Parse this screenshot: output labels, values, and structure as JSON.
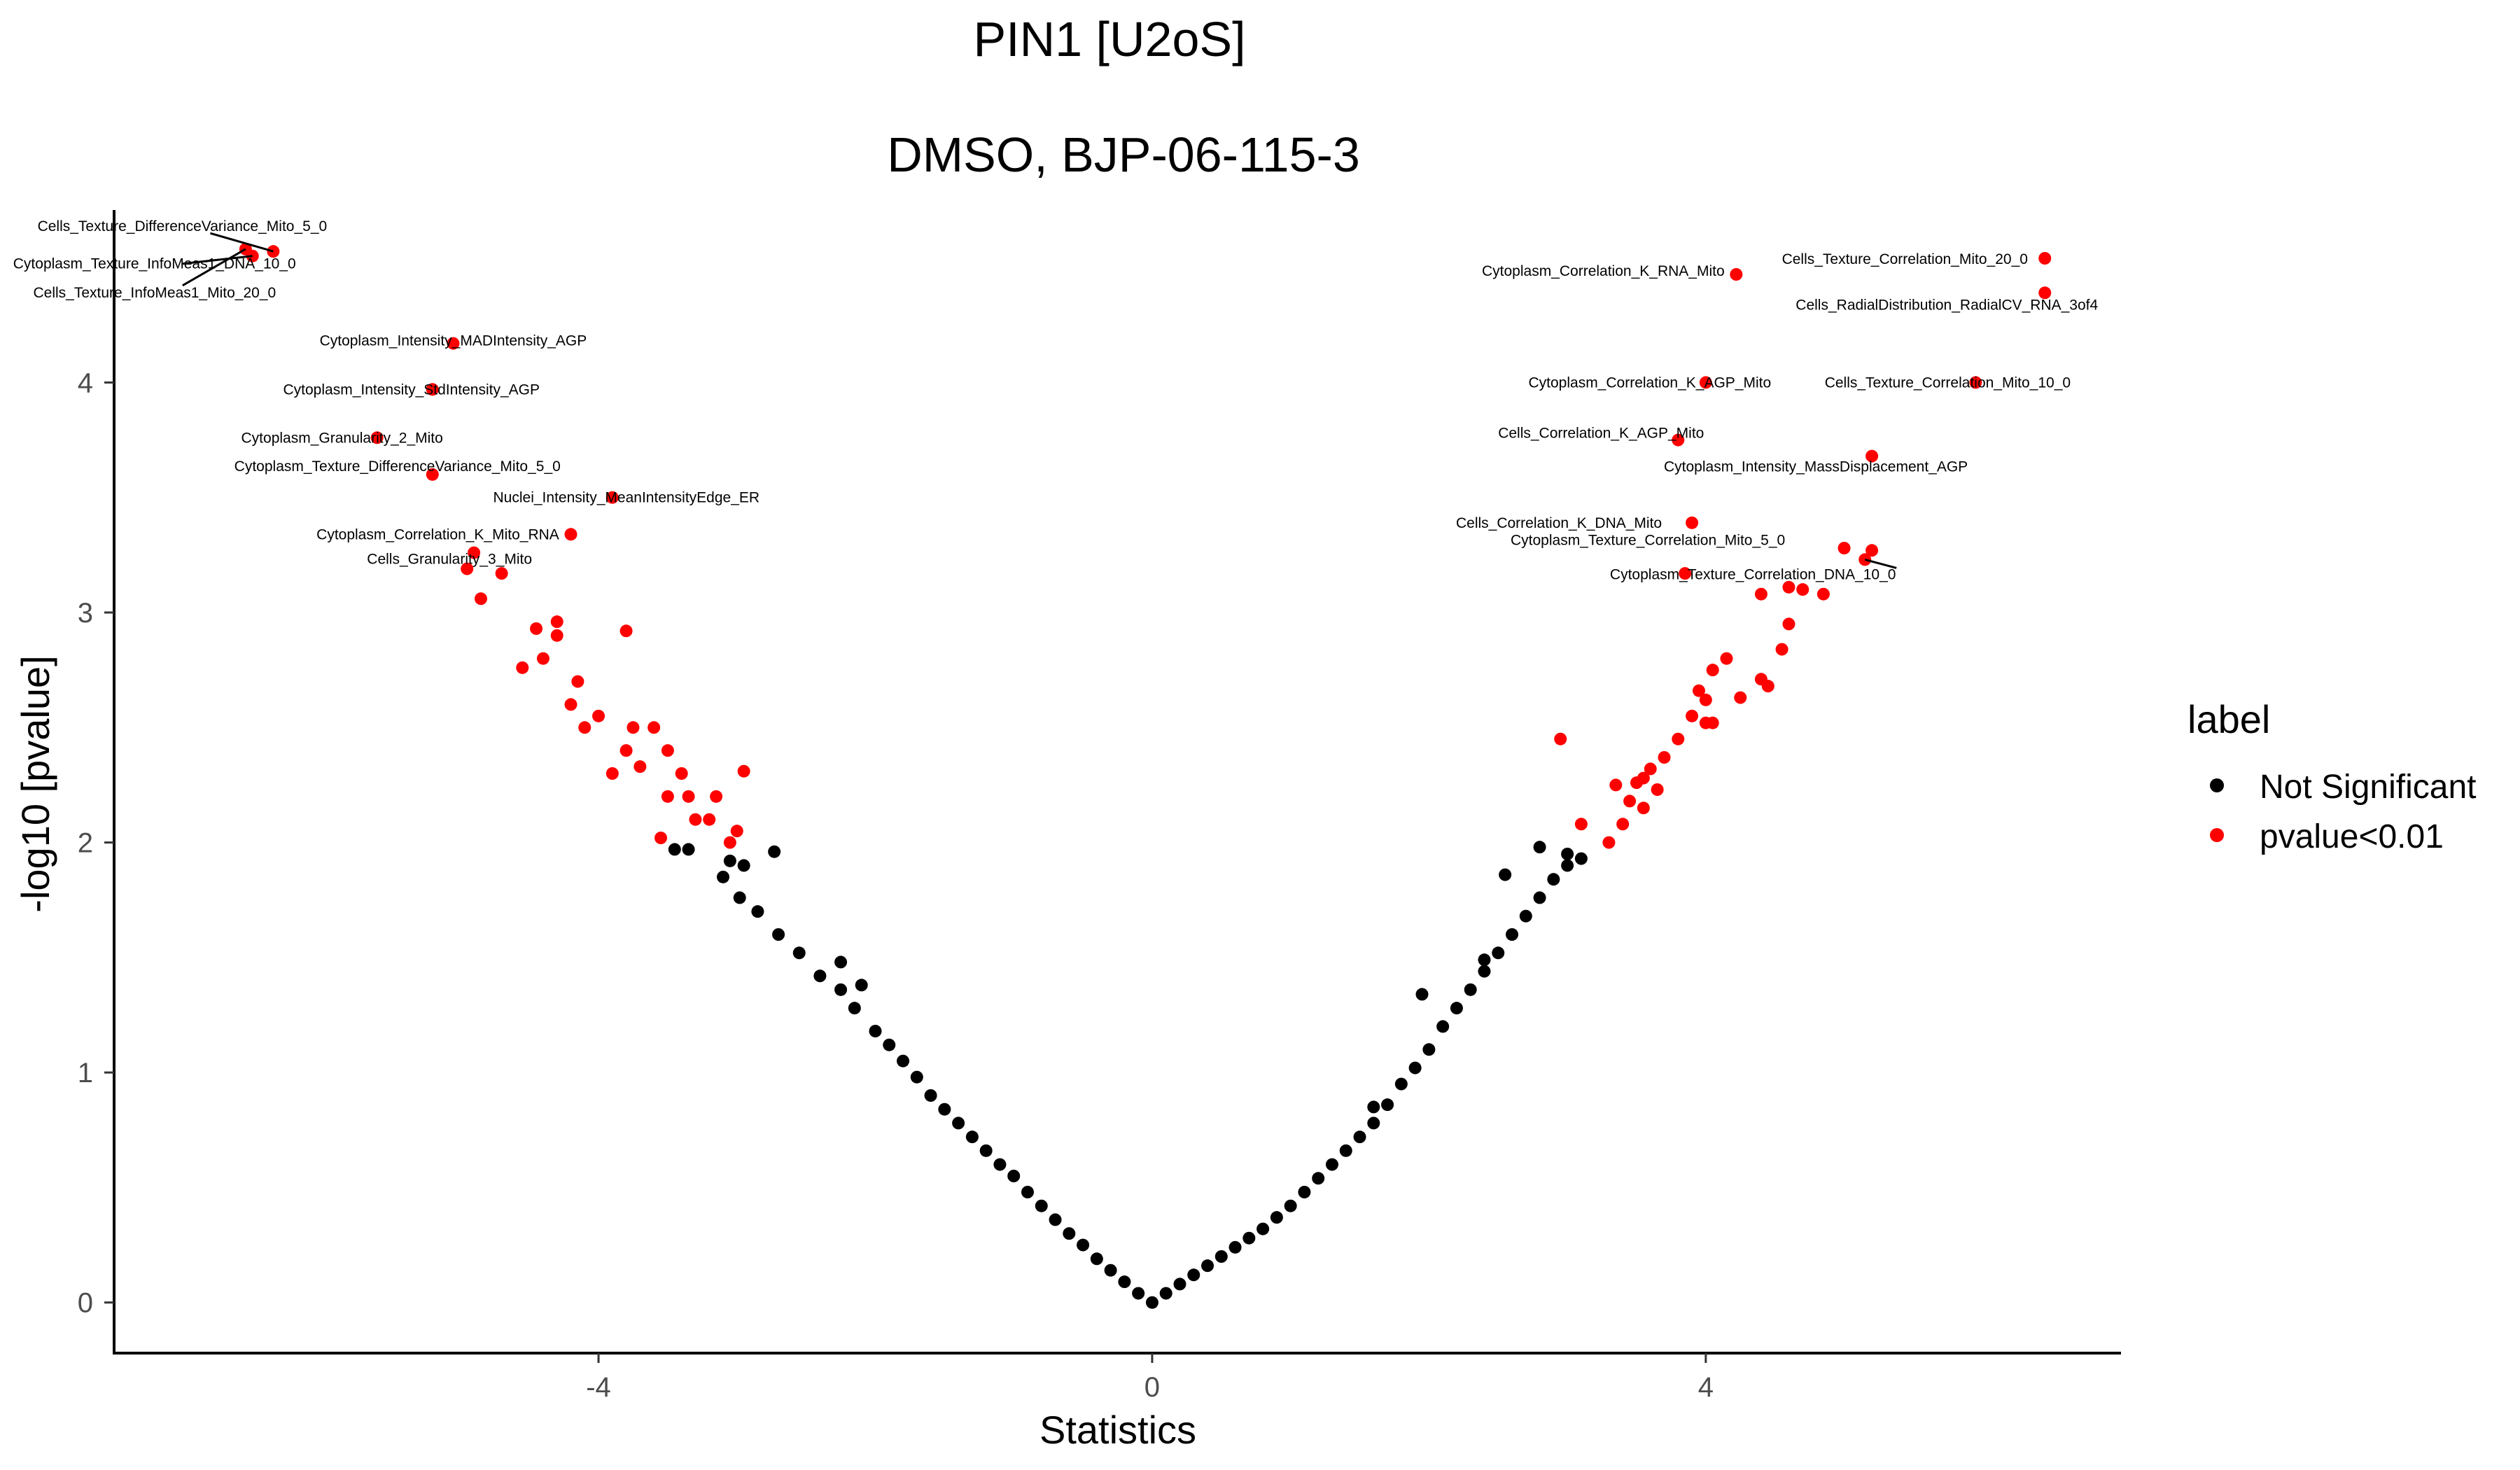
{
  "chart_data": {
    "type": "scatter",
    "title": "PIN1 [U2oS]",
    "subtitle": "DMSO, BJP-06-115-3",
    "xlabel": "Statistics",
    "ylabel": "-log10 [pvalue]",
    "xlim": [
      -7.5,
      7.0
    ],
    "ylim": [
      -0.22,
      4.75
    ],
    "x_ticks": [
      -4,
      0,
      4
    ],
    "x_tick_labels": [
      "-4",
      "0",
      "4"
    ],
    "y_ticks": [
      0,
      1,
      2,
      3,
      4
    ],
    "y_tick_labels": [
      "0",
      "1",
      "2",
      "3",
      "4"
    ],
    "grid": false,
    "legend": {
      "title": "label",
      "placement": "right",
      "entries": [
        {
          "name": "Not Significant",
          "color": "#000000"
        },
        {
          "name": "pvalue<0.01",
          "color": "#ff0000"
        }
      ]
    },
    "series": [
      {
        "name": "Not Significant",
        "color": "#000000",
        "points": [
          [
            -3.45,
            1.97
          ],
          [
            -3.35,
            1.97
          ],
          [
            -3.05,
            1.92
          ],
          [
            -2.95,
            1.9
          ],
          [
            -2.73,
            1.96
          ],
          [
            -3.1,
            1.85
          ],
          [
            -2.98,
            1.76
          ],
          [
            -2.85,
            1.7
          ],
          [
            -2.7,
            1.6
          ],
          [
            -2.55,
            1.52
          ],
          [
            -2.4,
            1.42
          ],
          [
            -2.25,
            1.36
          ],
          [
            -2.15,
            1.28
          ],
          [
            -2.25,
            1.48
          ],
          [
            -2.1,
            1.38
          ],
          [
            -2.0,
            1.18
          ],
          [
            -1.9,
            1.12
          ],
          [
            -1.8,
            1.05
          ],
          [
            -1.7,
            0.98
          ],
          [
            -1.6,
            0.9
          ],
          [
            -1.5,
            0.84
          ],
          [
            -1.4,
            0.78
          ],
          [
            -1.3,
            0.72
          ],
          [
            -1.2,
            0.66
          ],
          [
            -1.1,
            0.6
          ],
          [
            -1.0,
            0.55
          ],
          [
            -0.9,
            0.48
          ],
          [
            -0.8,
            0.42
          ],
          [
            -0.7,
            0.36
          ],
          [
            -0.6,
            0.3
          ],
          [
            -0.5,
            0.25
          ],
          [
            -0.4,
            0.19
          ],
          [
            -0.3,
            0.14
          ],
          [
            -0.2,
            0.09
          ],
          [
            -0.1,
            0.04
          ],
          [
            0.0,
            0.0
          ],
          [
            0.1,
            0.04
          ],
          [
            0.2,
            0.08
          ],
          [
            0.3,
            0.12
          ],
          [
            0.4,
            0.16
          ],
          [
            0.5,
            0.2
          ],
          [
            0.6,
            0.24
          ],
          [
            0.7,
            0.28
          ],
          [
            0.8,
            0.32
          ],
          [
            0.9,
            0.37
          ],
          [
            1.0,
            0.42
          ],
          [
            1.1,
            0.48
          ],
          [
            1.2,
            0.54
          ],
          [
            1.3,
            0.6
          ],
          [
            1.4,
            0.66
          ],
          [
            1.5,
            0.72
          ],
          [
            1.6,
            0.78
          ],
          [
            1.7,
            0.86
          ],
          [
            1.8,
            0.95
          ],
          [
            1.9,
            1.02
          ],
          [
            2.0,
            1.1
          ],
          [
            2.1,
            1.2
          ],
          [
            2.2,
            1.28
          ],
          [
            2.3,
            1.36
          ],
          [
            2.4,
            1.44
          ],
          [
            2.5,
            1.52
          ],
          [
            2.6,
            1.6
          ],
          [
            2.7,
            1.68
          ],
          [
            2.8,
            1.76
          ],
          [
            2.9,
            1.84
          ],
          [
            3.0,
            1.9
          ],
          [
            3.1,
            1.93
          ],
          [
            2.55,
            1.86
          ],
          [
            2.8,
            1.98
          ],
          [
            3.0,
            1.95
          ],
          [
            1.95,
            1.34
          ],
          [
            2.4,
            1.49
          ],
          [
            1.6,
            0.85
          ]
        ]
      },
      {
        "name": "pvalue<0.01",
        "color": "#ff0000",
        "points": [
          [
            -6.55,
            4.58
          ],
          [
            -6.35,
            4.57
          ],
          [
            -6.5,
            4.55
          ],
          [
            -5.05,
            4.17
          ],
          [
            -5.2,
            3.97
          ],
          [
            -5.6,
            3.76
          ],
          [
            -5.2,
            3.6
          ],
          [
            -3.9,
            3.5
          ],
          [
            -4.2,
            3.34
          ],
          [
            -4.9,
            3.26
          ],
          [
            -4.7,
            3.17
          ],
          [
            -4.95,
            3.19
          ],
          [
            -4.85,
            3.06
          ],
          [
            -4.45,
            2.93
          ],
          [
            -4.3,
            2.96
          ],
          [
            -4.3,
            2.9
          ],
          [
            -3.8,
            2.92
          ],
          [
            -4.4,
            2.8
          ],
          [
            -4.55,
            2.76
          ],
          [
            -4.15,
            2.7
          ],
          [
            -4.2,
            2.6
          ],
          [
            -4.0,
            2.55
          ],
          [
            -4.1,
            2.5
          ],
          [
            -3.75,
            2.5
          ],
          [
            -3.6,
            2.5
          ],
          [
            -3.8,
            2.4
          ],
          [
            -3.9,
            2.3
          ],
          [
            -3.7,
            2.33
          ],
          [
            -3.5,
            2.4
          ],
          [
            -3.4,
            2.3
          ],
          [
            -3.35,
            2.2
          ],
          [
            -3.5,
            2.2
          ],
          [
            -3.3,
            2.1
          ],
          [
            -3.2,
            2.1
          ],
          [
            -3.15,
            2.2
          ],
          [
            -3.0,
            2.05
          ],
          [
            -2.95,
            2.31
          ],
          [
            -3.55,
            2.02
          ],
          [
            -3.05,
            2.0
          ],
          [
            4.22,
            4.47
          ],
          [
            6.45,
            4.54
          ],
          [
            6.45,
            4.39
          ],
          [
            5.95,
            4.0
          ],
          [
            4.0,
            4.0
          ],
          [
            3.8,
            3.75
          ],
          [
            5.2,
            3.68
          ],
          [
            3.9,
            3.39
          ],
          [
            3.85,
            3.17
          ],
          [
            5.0,
            3.28
          ],
          [
            5.2,
            3.27
          ],
          [
            5.15,
            3.23
          ],
          [
            4.4,
            3.08
          ],
          [
            4.6,
            3.11
          ],
          [
            4.7,
            3.1
          ],
          [
            4.85,
            3.08
          ],
          [
            4.6,
            2.95
          ],
          [
            4.55,
            2.84
          ],
          [
            4.15,
            2.8
          ],
          [
            4.05,
            2.75
          ],
          [
            4.4,
            2.71
          ],
          [
            4.45,
            2.68
          ],
          [
            4.25,
            2.63
          ],
          [
            3.95,
            2.66
          ],
          [
            4.0,
            2.62
          ],
          [
            3.9,
            2.55
          ],
          [
            4.0,
            2.52
          ],
          [
            4.05,
            2.52
          ],
          [
            2.95,
            2.45
          ],
          [
            3.8,
            2.45
          ],
          [
            3.7,
            2.37
          ],
          [
            3.6,
            2.32
          ],
          [
            3.55,
            2.28
          ],
          [
            3.65,
            2.23
          ],
          [
            3.5,
            2.26
          ],
          [
            3.55,
            2.15
          ],
          [
            3.35,
            2.25
          ],
          [
            3.45,
            2.18
          ],
          [
            3.4,
            2.08
          ],
          [
            3.1,
            2.08
          ],
          [
            3.3,
            2.0
          ]
        ],
        "labels": [
          {
            "x": -6.35,
            "y": 4.57,
            "text": "Cells_Texture_DifferenceVariance_Mito_5_0"
          },
          {
            "x": -6.5,
            "y": 4.55,
            "text": "Cytoplasm_Texture_InfoMeas1_DNA_10_0"
          },
          {
            "x": -6.55,
            "y": 4.58,
            "text": "Cells_Texture_InfoMeas1_Mito_20_0"
          },
          {
            "x": -5.05,
            "y": 4.17,
            "text": "Cytoplasm_Intensity_MADIntensity_AGP"
          },
          {
            "x": -5.2,
            "y": 3.97,
            "text": "Cytoplasm_Intensity_StdIntensity_AGP"
          },
          {
            "x": -5.6,
            "y": 3.76,
            "text": "Cytoplasm_Granularity_2_Mito"
          },
          {
            "x": -5.2,
            "y": 3.6,
            "text": "Cytoplasm_Texture_DifferenceVariance_Mito_5_0"
          },
          {
            "x": -3.9,
            "y": 3.5,
            "text": "Nuclei_Intensity_MeanIntensityEdge_ER"
          },
          {
            "x": -4.2,
            "y": 3.34,
            "text": "Cytoplasm_Correlation_K_Mito_RNA"
          },
          {
            "x": -4.95,
            "y": 3.19,
            "text": "Cells_Granularity_3_Mito"
          },
          {
            "x": 6.45,
            "y": 4.54,
            "text": "Cells_Texture_Correlation_Mito_20_0"
          },
          {
            "x": 4.22,
            "y": 4.47,
            "text": "Cytoplasm_Correlation_K_RNA_Mito"
          },
          {
            "x": 6.45,
            "y": 4.39,
            "text": "Cells_RadialDistribution_RadialCV_RNA_3of4"
          },
          {
            "x": 4.0,
            "y": 4.0,
            "text": "Cytoplasm_Correlation_K_AGP_Mito"
          },
          {
            "x": 5.95,
            "y": 4.0,
            "text": "Cells_Texture_Correlation_Mito_10_0"
          },
          {
            "x": 3.8,
            "y": 3.75,
            "text": "Cells_Correlation_K_AGP_Mito"
          },
          {
            "x": 5.2,
            "y": 3.68,
            "text": "Cytoplasm_Intensity_MassDisplacement_AGP"
          },
          {
            "x": 3.9,
            "y": 3.39,
            "text": "Cells_Correlation_K_DNA_Mito"
          },
          {
            "x": 5.2,
            "y": 3.27,
            "text": "Cytoplasm_Texture_Correlation_Mito_5_0"
          },
          {
            "x": 5.15,
            "y": 3.23,
            "text": "Cytoplasm_Texture_Correlation_DNA_10_0"
          }
        ]
      }
    ]
  }
}
